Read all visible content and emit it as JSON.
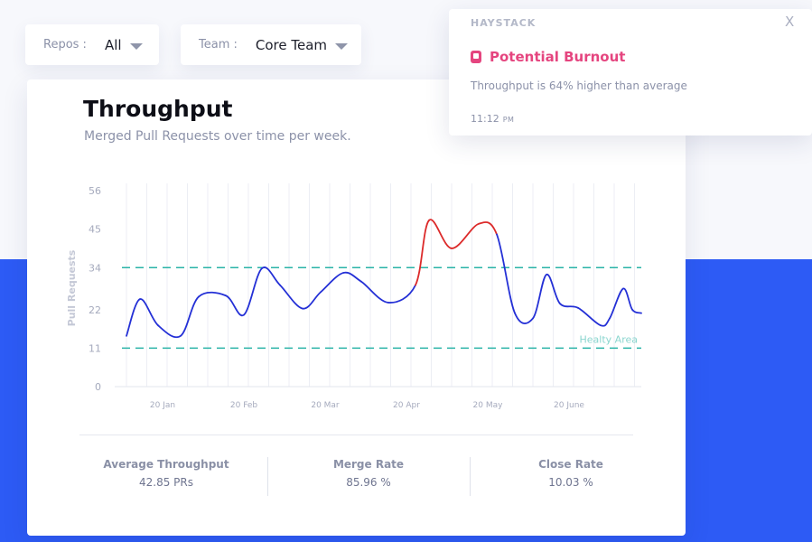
{
  "filters": {
    "repos": {
      "label": "Repos :",
      "value": "All"
    },
    "team": {
      "label": "Team :",
      "value": "Core Team"
    }
  },
  "card": {
    "title": "Throughput",
    "subtitle": "Merged Pull Requests over time per week."
  },
  "chart_data": {
    "type": "line",
    "ylabel": "Pull Requests",
    "xlabel": "",
    "yticks": [
      0,
      11,
      22,
      34,
      45,
      56
    ],
    "ylim": [
      0,
      56
    ],
    "x_ticks": [
      {
        "label": "20 Jan",
        "week": 2
      },
      {
        "label": "20 Feb",
        "week": 6.5
      },
      {
        "label": "20 Mar",
        "week": 11
      },
      {
        "label": "20 Apr",
        "week": 15.5
      },
      {
        "label": "20 May",
        "week": 20
      },
      {
        "label": "20 June",
        "week": 24.5
      }
    ],
    "xlim": [
      -0.25,
      28.5
    ],
    "grid": true,
    "healthy_band": {
      "label": "Healty Area",
      "lower": 11,
      "upper": 34,
      "color": "#2ab3a7"
    },
    "series": [
      {
        "color_normal": "#2430d6",
        "color_alert": "#dc2a2a",
        "points": [
          [
            0,
            14.5
          ],
          [
            0.75,
            25
          ],
          [
            1.75,
            17.5
          ],
          [
            3,
            14.5
          ],
          [
            4,
            25.7
          ],
          [
            5.5,
            26
          ],
          [
            6.5,
            20.5
          ],
          [
            7.5,
            33.8
          ],
          [
            8.5,
            29
          ],
          [
            9.75,
            22.3
          ],
          [
            10.75,
            27
          ],
          [
            12,
            32.5
          ],
          [
            13,
            30
          ],
          [
            14.5,
            24
          ],
          [
            16,
            29
          ],
          [
            16.75,
            47.5
          ],
          [
            18,
            39.5
          ],
          [
            19.5,
            46.5
          ],
          [
            20.5,
            43.5
          ],
          [
            21.5,
            21
          ],
          [
            22.5,
            19.5
          ],
          [
            23.25,
            32
          ],
          [
            24,
            23.7
          ],
          [
            25,
            22.5
          ],
          [
            26.25,
            17.5
          ],
          [
            26.75,
            19.5
          ],
          [
            27.5,
            28
          ],
          [
            28,
            22
          ],
          [
            28.5,
            21
          ]
        ],
        "alert_range": [
          15.9,
          20.9
        ]
      }
    ]
  },
  "stats": [
    {
      "label": "Average Throughput",
      "value": "42.85 PRs"
    },
    {
      "label": "Merge Rate",
      "value": "85.96 %"
    },
    {
      "label": "Close Rate",
      "value": "10.03 %"
    }
  ],
  "notification": {
    "brand": "HAYSTACK",
    "title": "Potential Burnout",
    "message": "Throughput is 64% higher than average",
    "time": "11:12",
    "ampm": "PM",
    "close": "X",
    "accent": "#e5457f"
  },
  "colors": {
    "blue_band": "#2d5bf5",
    "healthy": "#2ab3a7"
  }
}
